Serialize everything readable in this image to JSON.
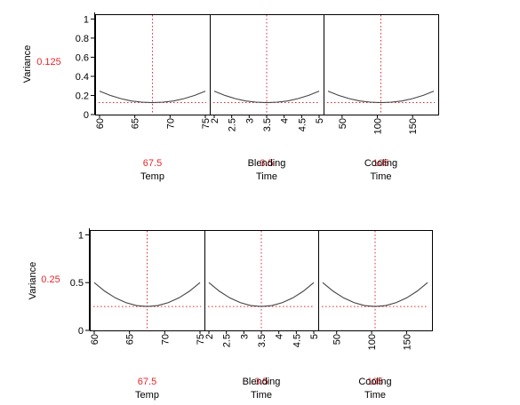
{
  "chart_data": [
    {
      "type": "line",
      "chart_kind": "prediction-profiler",
      "ylabel": "Variance",
      "y_current": "0.125",
      "ylim": [
        0,
        1.05
      ],
      "yticks": [
        "0",
        "0.2",
        "0.4",
        "0.6",
        "0.8",
        "1"
      ],
      "grid": false,
      "series_color": "#000000",
      "reference_color": "#e8262a",
      "factors": [
        {
          "label": "Temp",
          "label_lines": [
            "Temp"
          ],
          "current_value": "67.5",
          "current": 67.5,
          "xlim": [
            60,
            75
          ],
          "xticks": [
            "60",
            "65",
            "70",
            "75"
          ],
          "x": [
            60,
            61.5,
            63,
            64.5,
            66,
            67.5,
            69,
            70.5,
            72,
            73.5,
            75
          ],
          "y": [
            0.245,
            0.201,
            0.167,
            0.142,
            0.13,
            0.125,
            0.13,
            0.142,
            0.167,
            0.201,
            0.245
          ]
        },
        {
          "label": "Blending Time",
          "label_lines": [
            "Blending",
            "Time"
          ],
          "current_value": "3.5",
          "current": 3.5,
          "xlim": [
            2,
            5
          ],
          "xticks": [
            "2",
            "2.5",
            "3",
            "3.5",
            "4",
            "4.5",
            "5"
          ],
          "x": [
            2,
            2.3,
            2.6,
            2.9,
            3.2,
            3.5,
            3.8,
            4.1,
            4.4,
            4.7,
            5
          ],
          "y": [
            0.245,
            0.201,
            0.167,
            0.142,
            0.13,
            0.125,
            0.13,
            0.142,
            0.167,
            0.201,
            0.245
          ]
        },
        {
          "label": "Cooling Time",
          "label_lines": [
            "Cooling",
            "Time"
          ],
          "current_value": "105",
          "current": 105,
          "xlim": [
            30,
            180
          ],
          "xticks": [
            "50",
            "100",
            "150"
          ],
          "x": [
            30,
            45,
            60,
            75,
            90,
            105,
            120,
            135,
            150,
            165,
            180
          ],
          "y": [
            0.245,
            0.201,
            0.167,
            0.142,
            0.13,
            0.125,
            0.13,
            0.142,
            0.167,
            0.201,
            0.245
          ]
        }
      ]
    },
    {
      "type": "line",
      "chart_kind": "prediction-profiler",
      "ylabel": "Variance",
      "y_current": "0.25",
      "ylim": [
        0,
        1.05
      ],
      "yticks": [
        "0",
        "0.5",
        "1"
      ],
      "grid": false,
      "series_color": "#000000",
      "reference_color": "#e8262a",
      "factors": [
        {
          "label": "Temp",
          "label_lines": [
            "Temp"
          ],
          "current_value": "67.5",
          "current": 67.5,
          "xlim": [
            60,
            75
          ],
          "xticks": [
            "60",
            "65",
            "70",
            "75"
          ],
          "x": [
            60,
            61.5,
            63,
            64.5,
            66,
            67.5,
            69,
            70.5,
            72,
            73.5,
            75
          ],
          "y": [
            0.5,
            0.41,
            0.34,
            0.29,
            0.26,
            0.25,
            0.26,
            0.29,
            0.34,
            0.41,
            0.5
          ]
        },
        {
          "label": "Blending Time",
          "label_lines": [
            "Blending",
            "Time"
          ],
          "current_value": "3.5",
          "current": 3.5,
          "xlim": [
            2,
            5
          ],
          "xticks": [
            "2",
            "2.5",
            "3",
            "3.5",
            "4",
            "4.5",
            "5"
          ],
          "x": [
            2,
            2.3,
            2.6,
            2.9,
            3.2,
            3.5,
            3.8,
            4.1,
            4.4,
            4.7,
            5
          ],
          "y": [
            0.5,
            0.41,
            0.34,
            0.29,
            0.26,
            0.25,
            0.26,
            0.29,
            0.34,
            0.41,
            0.5
          ]
        },
        {
          "label": "Cooling Time",
          "label_lines": [
            "Cooling",
            "Time"
          ],
          "current_value": "105",
          "current": 105,
          "xlim": [
            30,
            180
          ],
          "xticks": [
            "50",
            "100",
            "150"
          ],
          "x": [
            30,
            45,
            60,
            75,
            90,
            105,
            120,
            135,
            150,
            165,
            180
          ],
          "y": [
            0.5,
            0.41,
            0.34,
            0.29,
            0.26,
            0.25,
            0.26,
            0.29,
            0.34,
            0.41,
            0.5
          ]
        }
      ]
    }
  ]
}
